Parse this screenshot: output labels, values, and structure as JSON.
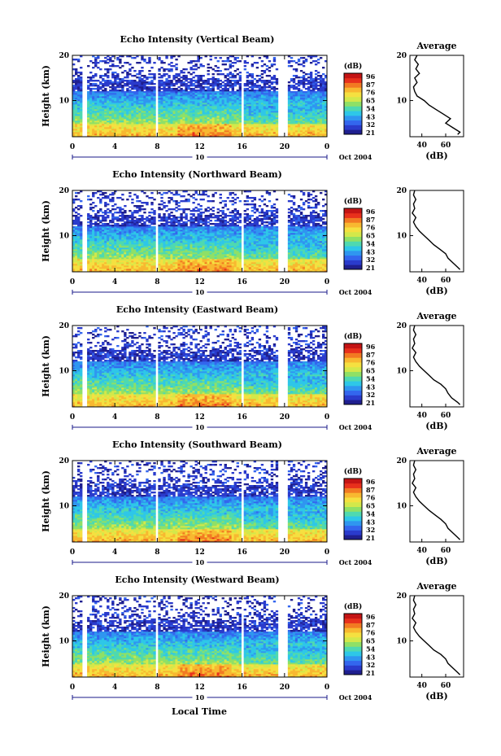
{
  "figure": {
    "xlabel": "Local Time",
    "avg_title": "Average",
    "ylabel": "Height (km)",
    "cbar_unit": "(dB)",
    "date_label": "Oct 2004",
    "day_label": "10",
    "avg_xlabel": "(dB)"
  },
  "colorbar_ticks": [
    "96",
    "87",
    "76",
    "65",
    "54",
    "43",
    "32",
    "21"
  ],
  "colors": {
    "colormap": [
      "#1f1f8f",
      "#2a3bcc",
      "#3366ee",
      "#2f96f0",
      "#2ec7e8",
      "#4fd9b0",
      "#8fe066",
      "#d3e84a",
      "#f5e040",
      "#f8b830",
      "#f27a22",
      "#e8301c",
      "#c41414"
    ],
    "gap": "#ffffff"
  },
  "chart_data": [
    {
      "type": "heatmap",
      "title": "Echo Intensity (Vertical Beam)",
      "xlabel": "",
      "ylabel": "Height (km)",
      "x_ticks": [
        "0",
        "4",
        "8",
        "12",
        "16",
        "20",
        "0"
      ],
      "y_ticks": [
        "10",
        "20"
      ],
      "xlim": [
        0,
        24
      ],
      "ylim": [
        2,
        20
      ],
      "value_range_db": [
        21,
        96
      ],
      "data_gaps_hours": [
        [
          1.0,
          1.4
        ],
        [
          7.8,
          8.1
        ],
        [
          15.9,
          16.1
        ],
        [
          19.5,
          20.2
        ]
      ],
      "avg_profile": {
        "title": "Average",
        "xlabel": "(dB)",
        "x_ticks": [
          "40",
          "60"
        ],
        "y_ticks": [
          "10",
          "20"
        ],
        "xlim": [
          30,
          75
        ],
        "ylim": [
          2,
          20
        ],
        "height_km": [
          2.5,
          3,
          4,
          5,
          6,
          7,
          8,
          9,
          10,
          11,
          12,
          13,
          14,
          15,
          16,
          17,
          18,
          19,
          20
        ],
        "db": [
          70,
          72,
          66,
          60,
          64,
          58,
          52,
          46,
          42,
          36,
          34,
          33,
          36,
          34,
          38,
          35,
          37,
          34,
          36
        ]
      }
    },
    {
      "type": "heatmap",
      "title": "Echo Intensity (Northward Beam)",
      "xlabel": "",
      "ylabel": "Height (km)",
      "x_ticks": [
        "0",
        "4",
        "8",
        "12",
        "16",
        "20",
        "0"
      ],
      "y_ticks": [
        "10",
        "20"
      ],
      "xlim": [
        0,
        24
      ],
      "ylim": [
        2,
        20
      ],
      "value_range_db": [
        21,
        96
      ],
      "data_gaps_hours": [
        [
          1.0,
          1.4
        ],
        [
          7.8,
          8.1
        ],
        [
          15.9,
          16.1
        ],
        [
          19.5,
          20.2
        ]
      ],
      "avg_profile": {
        "title": "",
        "xlabel": "(dB)",
        "x_ticks": [
          "40",
          "60"
        ],
        "y_ticks": [
          "10",
          "20"
        ],
        "xlim": [
          30,
          75
        ],
        "ylim": [
          2,
          20
        ],
        "height_km": [
          2.5,
          3,
          4,
          5,
          6,
          7,
          8,
          9,
          10,
          11,
          12,
          13,
          14,
          15,
          16,
          17,
          18,
          19,
          20
        ],
        "db": [
          72,
          70,
          66,
          62,
          60,
          55,
          50,
          46,
          42,
          38,
          35,
          33,
          35,
          32,
          34,
          33,
          35,
          33,
          34
        ]
      }
    },
    {
      "type": "heatmap",
      "title": "Echo Intensity (Eastward Beam)",
      "xlabel": "",
      "ylabel": "Height (km)",
      "x_ticks": [
        "0",
        "4",
        "8",
        "12",
        "16",
        "20",
        "0"
      ],
      "y_ticks": [
        "10",
        "20"
      ],
      "xlim": [
        0,
        24
      ],
      "ylim": [
        2,
        20
      ],
      "value_range_db": [
        21,
        96
      ],
      "data_gaps_hours": [
        [
          1.0,
          1.4
        ],
        [
          7.8,
          8.1
        ],
        [
          15.9,
          16.1
        ],
        [
          19.5,
          20.2
        ]
      ],
      "avg_profile": {
        "title": "Average",
        "xlabel": "(dB)",
        "x_ticks": [
          "40",
          "60"
        ],
        "y_ticks": [
          "10",
          "20"
        ],
        "xlim": [
          30,
          75
        ],
        "ylim": [
          2,
          20
        ],
        "height_km": [
          2.5,
          3,
          4,
          5,
          6,
          7,
          8,
          9,
          10,
          11,
          12,
          13,
          14,
          15,
          16,
          17,
          18,
          19,
          20
        ],
        "db": [
          72,
          70,
          65,
          62,
          60,
          56,
          50,
          46,
          42,
          38,
          35,
          33,
          35,
          32,
          34,
          33,
          35,
          33,
          34
        ]
      }
    },
    {
      "type": "heatmap",
      "title": "Echo Intensity (Southward Beam)",
      "xlabel": "",
      "ylabel": "Height (km)",
      "x_ticks": [
        "0",
        "4",
        "8",
        "12",
        "16",
        "20",
        "0"
      ],
      "y_ticks": [
        "10",
        "20"
      ],
      "xlim": [
        0,
        24
      ],
      "ylim": [
        2,
        20
      ],
      "value_range_db": [
        21,
        96
      ],
      "data_gaps_hours": [
        [
          1.0,
          1.4
        ],
        [
          7.8,
          8.1
        ],
        [
          15.9,
          16.1
        ],
        [
          19.5,
          20.2
        ]
      ],
      "avg_profile": {
        "title": "Average",
        "xlabel": "(dB)",
        "x_ticks": [
          "40",
          "60"
        ],
        "y_ticks": [
          "10",
          "20"
        ],
        "xlim": [
          30,
          75
        ],
        "ylim": [
          2,
          20
        ],
        "height_km": [
          2.5,
          3,
          4,
          5,
          6,
          7,
          8,
          9,
          10,
          11,
          12,
          13,
          14,
          15,
          16,
          17,
          18,
          19,
          20
        ],
        "db": [
          72,
          70,
          66,
          62,
          60,
          56,
          51,
          46,
          42,
          38,
          35,
          33,
          35,
          32,
          34,
          33,
          35,
          33,
          34
        ]
      }
    },
    {
      "type": "heatmap",
      "title": "Echo Intensity (Westward Beam)",
      "xlabel": "Local Time",
      "ylabel": "Height (km)",
      "x_ticks": [
        "0",
        "4",
        "8",
        "12",
        "16",
        "20",
        "0"
      ],
      "y_ticks": [
        "10",
        "20"
      ],
      "xlim": [
        0,
        24
      ],
      "ylim": [
        2,
        20
      ],
      "value_range_db": [
        21,
        96
      ],
      "data_gaps_hours": [
        [
          1.0,
          1.4
        ],
        [
          7.8,
          8.1
        ],
        [
          15.9,
          16.1
        ],
        [
          19.5,
          20.2
        ]
      ],
      "avg_profile": {
        "title": "Average",
        "xlabel": "(dB)",
        "x_ticks": [
          "40",
          "60"
        ],
        "y_ticks": [
          "10",
          "20"
        ],
        "xlim": [
          30,
          75
        ],
        "ylim": [
          2,
          20
        ],
        "height_km": [
          2.5,
          3,
          4,
          5,
          6,
          7,
          8,
          9,
          10,
          11,
          12,
          13,
          14,
          15,
          16,
          17,
          18,
          19,
          20
        ],
        "db": [
          72,
          70,
          66,
          62,
          60,
          56,
          50,
          46,
          42,
          38,
          35,
          33,
          35,
          32,
          34,
          33,
          35,
          33,
          34
        ]
      }
    }
  ]
}
